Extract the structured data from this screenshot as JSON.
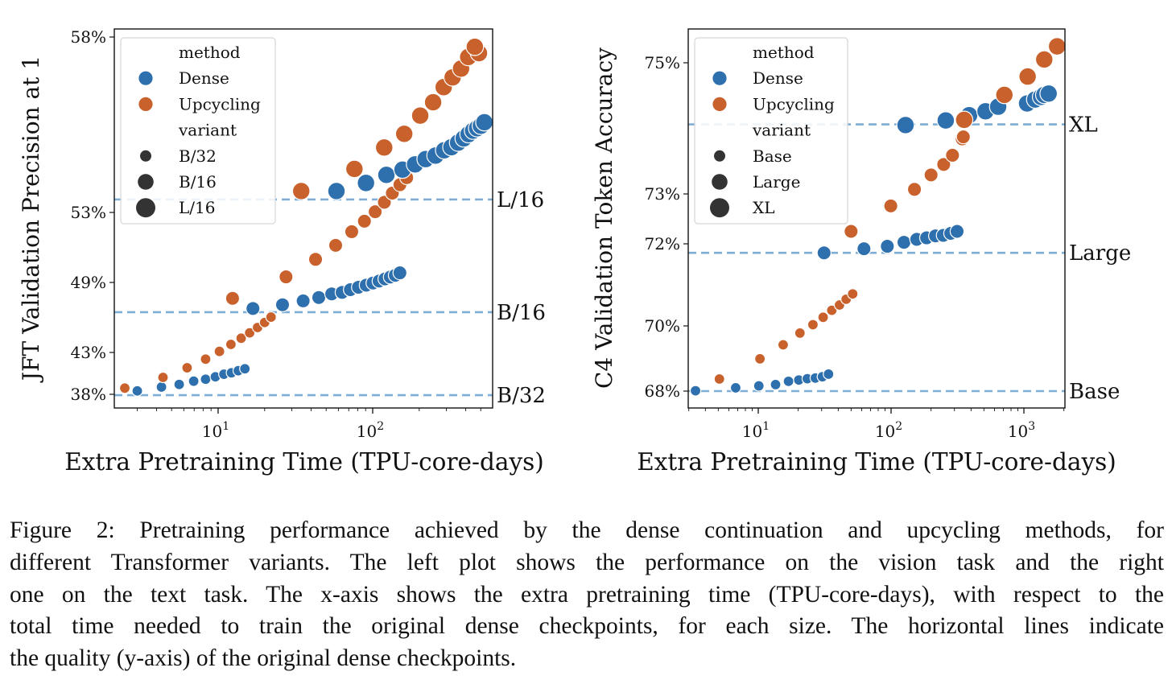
{
  "colors": {
    "dense": "#2e6fad",
    "upcycling": "#c8612b",
    "reference": "#7eaed6",
    "legend_marker": "#333333"
  },
  "chart_data": [
    {
      "type": "scatter",
      "id": "left",
      "xlabel": "Extra Pretraining Time (TPU-core-days)",
      "ylabel": "JFT Validation Precision at 1",
      "xscale": "log",
      "xlim": [
        2.13,
        597
      ],
      "ylim": [
        36.4,
        58.2
      ],
      "xticks": [
        {
          "value": 10,
          "label": "10",
          "exp": "1"
        },
        {
          "value": 100,
          "label": "10",
          "exp": "2"
        }
      ],
      "yticks": [
        {
          "value": 38,
          "label": "38%"
        },
        {
          "value": 43,
          "label": "43%"
        },
        {
          "value": 49,
          "label": "49%"
        },
        {
          "value": 53,
          "label": "53%"
        },
        {
          "value": 58,
          "label": "58%"
        }
      ],
      "grid": false,
      "legend": {
        "placement": "top-left",
        "title_method": "method",
        "methods": [
          "Dense",
          "Upcycling"
        ],
        "title_variant": "variant",
        "variants": [
          "B/32",
          "B/16",
          "L/16"
        ]
      },
      "reference_lines": [
        {
          "label": "L/16",
          "y": 53.37
        },
        {
          "label": "B/16",
          "y": 46.45
        },
        {
          "label": "B/32",
          "y": 37.9
        }
      ],
      "series": [
        {
          "method": "Dense",
          "variant": "B/32",
          "points": [
            [
              3.0,
              38.41
            ],
            [
              4.3,
              38.87
            ],
            [
              5.6,
              39.18
            ],
            [
              6.95,
              39.57
            ],
            [
              8.3,
              39.8
            ],
            [
              9.6,
              40.09
            ],
            [
              10.9,
              40.4
            ],
            [
              12.2,
              40.57
            ],
            [
              13.5,
              40.82
            ],
            [
              14.9,
              41.05
            ]
          ]
        },
        {
          "method": "Upcycling",
          "variant": "B/32",
          "points": [
            [
              2.49,
              38.74
            ],
            [
              4.4,
              40.02
            ],
            [
              6.3,
              41.17
            ],
            [
              8.3,
              42.2
            ],
            [
              10.2,
              43.09
            ],
            [
              12.1,
              43.69
            ],
            [
              14.1,
              44.22
            ],
            [
              16.0,
              44.68
            ],
            [
              18.0,
              45.14
            ],
            [
              20.0,
              45.57
            ],
            [
              22.0,
              46.03
            ]
          ]
        },
        {
          "method": "Dense",
          "variant": "B/16",
          "points": [
            [
              16.8,
              46.77
            ],
            [
              26.1,
              47.09
            ],
            [
              35.5,
              47.42
            ],
            [
              44.8,
              47.71
            ],
            [
              54.3,
              48.02
            ],
            [
              63.4,
              48.15
            ],
            [
              71.7,
              48.38
            ],
            [
              80.9,
              48.59
            ],
            [
              90.8,
              48.77
            ],
            [
              100.4,
              48.95
            ],
            [
              110,
              49.08
            ],
            [
              120,
              49.2
            ],
            [
              130,
              49.31
            ],
            [
              140,
              49.41
            ],
            [
              150,
              49.55
            ]
          ]
        },
        {
          "method": "Upcycling",
          "variant": "B/16",
          "points": [
            [
              12.4,
              47.64
            ],
            [
              27.5,
              49.32
            ],
            [
              42.7,
              50.32
            ],
            [
              57.6,
              51.12
            ],
            [
              73.2,
              51.9
            ],
            [
              88.4,
              52.5
            ],
            [
              103.8,
              53.02
            ],
            [
              119,
              53.29
            ],
            [
              134,
              53.55
            ],
            [
              150,
              53.79
            ],
            [
              166,
              53.99
            ]
          ]
        },
        {
          "method": "Dense",
          "variant": "L/16",
          "points": [
            [
              58.3,
              53.61
            ],
            [
              90.5,
              53.84
            ],
            [
              122.7,
              54.07
            ],
            [
              156,
              54.22
            ],
            [
              188,
              54.37
            ],
            [
              220,
              54.52
            ],
            [
              255,
              54.62
            ],
            [
              290,
              54.77
            ],
            [
              323,
              54.86
            ],
            [
              357,
              54.99
            ],
            [
              388,
              55.11
            ],
            [
              417,
              55.23
            ],
            [
              446,
              55.33
            ],
            [
              474,
              55.4
            ],
            [
              501,
              55.47
            ],
            [
              528,
              55.57
            ]
          ]
        },
        {
          "method": "Upcycling",
          "variant": "L/16",
          "points": [
            [
              34.5,
              53.61
            ],
            [
              76.2,
              54.24
            ],
            [
              118.7,
              54.85
            ],
            [
              160,
              55.24
            ],
            [
              203,
              55.76
            ],
            [
              246,
              56.14
            ],
            [
              288,
              56.57
            ],
            [
              329,
              56.85
            ],
            [
              373,
              57.1
            ],
            [
              415,
              57.43
            ],
            [
              487,
              57.54
            ],
            [
              458,
              57.72
            ]
          ]
        }
      ]
    },
    {
      "type": "scatter",
      "id": "right",
      "xlabel": "Extra Pretraining Time (TPU-core-days)",
      "ylabel": "C4 Validation Token Accuracy",
      "xscale": "log",
      "xlim": [
        2.97,
        2037
      ],
      "ylim": [
        67.48,
        75.52
      ],
      "xticks": [
        {
          "value": 10,
          "label": "10",
          "exp": "1"
        },
        {
          "value": 100,
          "label": "10",
          "exp": "2"
        },
        {
          "value": 1000,
          "label": "10",
          "exp": "3"
        }
      ],
      "yticks": [
        {
          "value": 68,
          "label": "68%"
        },
        {
          "value": 70,
          "label": "70%"
        },
        {
          "value": 72,
          "label": "72%"
        },
        {
          "value": 73,
          "label": "73%"
        },
        {
          "value": 75,
          "label": "75%"
        }
      ],
      "grid": false,
      "legend": {
        "placement": "top-left",
        "title_method": "method",
        "methods": [
          "Dense",
          "Upcycling"
        ],
        "title_variant": "variant",
        "variants": [
          "Base",
          "Large",
          "XL"
        ]
      },
      "reference_lines": [
        {
          "label": "XL",
          "y": 74.06
        },
        {
          "label": "Large",
          "y": 71.78
        },
        {
          "label": "Base",
          "y": 68.0
        }
      ],
      "series": [
        {
          "method": "Dense",
          "variant": "Base",
          "points": [
            [
              3.37,
              68.01
            ],
            [
              6.76,
              68.1
            ],
            [
              10.1,
              68.16
            ],
            [
              13.5,
              68.2
            ],
            [
              16.9,
              68.3
            ],
            [
              20.2,
              68.34
            ],
            [
              23.4,
              68.38
            ],
            [
              26.9,
              68.4
            ],
            [
              30.4,
              68.44
            ],
            [
              33.8,
              68.52
            ]
          ]
        },
        {
          "method": "Upcycling",
          "variant": "Base",
          "points": [
            [
              5.1,
              68.37
            ],
            [
              10.3,
              68.99
            ],
            [
              15.4,
              69.42
            ],
            [
              20.6,
              69.78
            ],
            [
              25.8,
              70.03
            ],
            [
              30.8,
              70.21
            ],
            [
              35.8,
              70.38
            ],
            [
              40.9,
              70.51
            ],
            [
              45.9,
              70.65
            ],
            [
              51.4,
              70.78
            ]
          ]
        },
        {
          "method": "Dense",
          "variant": "Large",
          "points": [
            [
              31.3,
              71.78
            ],
            [
              62.5,
              71.88
            ],
            [
              93.7,
              71.94
            ],
            [
              125,
              72.03
            ],
            [
              156,
              72.09
            ],
            [
              185,
              72.12
            ],
            [
              216,
              72.16
            ],
            [
              247,
              72.17
            ],
            [
              281,
              72.21
            ],
            [
              314,
              72.25
            ]
          ]
        },
        {
          "method": "Upcycling",
          "variant": "Large",
          "points": [
            [
              50,
              72.25
            ],
            [
              99.5,
              72.76
            ],
            [
              150,
              73.07
            ],
            [
              200,
              73.29
            ],
            [
              249,
              73.45
            ],
            [
              290,
              73.59
            ],
            [
              343,
              73.84
            ],
            [
              350,
              73.87
            ]
          ]
        },
        {
          "method": "Dense",
          "variant": "XL",
          "points": [
            [
              128.5,
              74.05
            ],
            [
              258,
              74.12
            ],
            [
              387,
              74.2
            ],
            [
              514,
              74.26
            ],
            [
              640,
              74.33
            ],
            [
              1057,
              74.38
            ],
            [
              1216,
              74.44
            ],
            [
              1347,
              74.48
            ],
            [
              1423,
              74.51
            ],
            [
              1535,
              74.53
            ]
          ]
        },
        {
          "method": "Upcycling",
          "variant": "XL",
          "points": [
            [
              355,
              74.13
            ],
            [
              713,
              74.51
            ],
            [
              1067,
              74.79
            ],
            [
              1423,
              75.05
            ],
            [
              1778,
              75.25
            ]
          ]
        }
      ]
    }
  ],
  "caption": {
    "lines": [
      "Figure 2: Pretraining performance achieved by the dense continuation and upcycling methods, for",
      "different Transformer variants. The left plot shows the performance on the vision task and the right",
      "one on the text task. The x-axis shows the extra pretraining time (TPU-core-days), with respect to the",
      "total time needed to train the original dense checkpoints, for each size. The horizontal lines indicate",
      "the quality (y-axis) of the original dense checkpoints."
    ]
  }
}
